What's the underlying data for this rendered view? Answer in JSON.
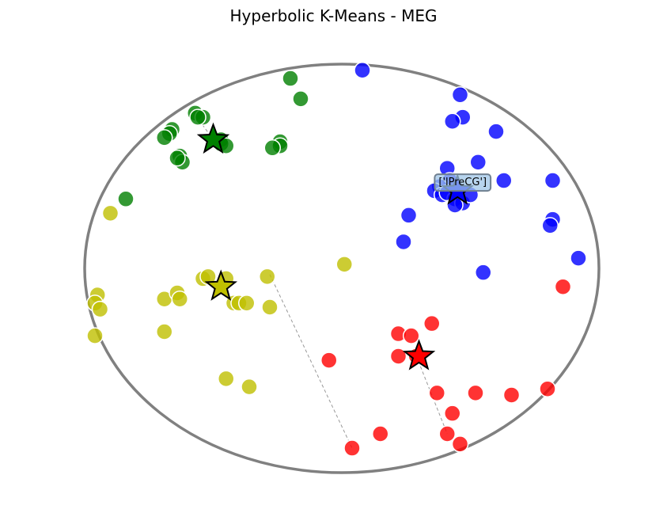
{
  "chart_data": {
    "type": "scatter",
    "title": "Hyperbolic K-Means - MEG",
    "xlim": [
      -1,
      1
    ],
    "ylim": [
      -1,
      1
    ],
    "grid": false,
    "legend": "none",
    "boundary": {
      "shape": "unit-circle",
      "color": "#808080"
    },
    "series": [
      {
        "color": "#0000ff",
        "centroid": [
          0.45,
          0.38
        ],
        "points": [
          [
            0.08,
            0.97
          ],
          [
            0.46,
            0.85
          ],
          [
            0.47,
            0.74
          ],
          [
            0.43,
            0.72
          ],
          [
            0.6,
            0.67
          ],
          [
            0.53,
            0.52
          ],
          [
            0.41,
            0.49
          ],
          [
            0.42,
            0.43
          ],
          [
            0.38,
            0.4
          ],
          [
            0.36,
            0.38
          ],
          [
            0.39,
            0.36
          ],
          [
            0.44,
            0.34
          ],
          [
            0.47,
            0.32
          ],
          [
            0.5,
            0.36
          ],
          [
            0.63,
            0.43
          ],
          [
            0.82,
            0.43
          ],
          [
            0.41,
            0.37
          ],
          [
            0.44,
            0.31
          ],
          [
            0.82,
            0.24
          ],
          [
            0.81,
            0.21
          ],
          [
            0.26,
            0.26
          ],
          [
            0.24,
            0.13
          ],
          [
            0.55,
            -0.02
          ],
          [
            0.92,
            0.05
          ]
        ]
      },
      {
        "color": "#008000",
        "centroid": [
          -0.5,
          0.63
        ],
        "points": [
          [
            -0.2,
            0.93
          ],
          [
            -0.16,
            0.83
          ],
          [
            -0.57,
            0.76
          ],
          [
            -0.54,
            0.74
          ],
          [
            -0.56,
            0.74
          ],
          [
            -0.66,
            0.68
          ],
          [
            -0.67,
            0.66
          ],
          [
            -0.69,
            0.64
          ],
          [
            -0.47,
            0.63
          ],
          [
            -0.47,
            0.61
          ],
          [
            -0.45,
            0.6
          ],
          [
            -0.24,
            0.62
          ],
          [
            -0.24,
            0.6
          ],
          [
            -0.27,
            0.59
          ],
          [
            -0.63,
            0.55
          ],
          [
            -0.62,
            0.52
          ],
          [
            -0.64,
            0.54
          ],
          [
            -0.84,
            0.34
          ]
        ]
      },
      {
        "color": "#bfbf00",
        "centroid": [
          -0.47,
          -0.09
        ],
        "points": [
          [
            -0.9,
            0.27
          ],
          [
            -0.54,
            -0.05
          ],
          [
            -0.52,
            -0.04
          ],
          [
            -0.45,
            -0.05
          ],
          [
            -0.29,
            -0.04
          ],
          [
            0.01,
            0.02
          ],
          [
            -0.95,
            -0.13
          ],
          [
            -0.96,
            -0.17
          ],
          [
            -0.94,
            -0.2
          ],
          [
            -0.69,
            -0.15
          ],
          [
            -0.64,
            -0.12
          ],
          [
            -0.63,
            -0.15
          ],
          [
            -0.42,
            -0.17
          ],
          [
            -0.4,
            -0.17
          ],
          [
            -0.37,
            -0.17
          ],
          [
            -0.28,
            -0.19
          ],
          [
            -0.96,
            -0.33
          ],
          [
            -0.69,
            -0.31
          ],
          [
            -0.45,
            -0.54
          ],
          [
            -0.36,
            -0.58
          ]
        ]
      },
      {
        "color": "#ff0000",
        "centroid": [
          0.3,
          -0.43
        ],
        "points": [
          [
            0.86,
            -0.09
          ],
          [
            0.35,
            -0.27
          ],
          [
            0.22,
            -0.32
          ],
          [
            0.27,
            -0.33
          ],
          [
            0.22,
            -0.43
          ],
          [
            0.29,
            -0.43
          ],
          [
            -0.05,
            -0.45
          ],
          [
            0.37,
            -0.61
          ],
          [
            0.52,
            -0.61
          ],
          [
            0.66,
            -0.62
          ],
          [
            0.8,
            -0.59
          ],
          [
            0.43,
            -0.71
          ],
          [
            0.15,
            -0.81
          ],
          [
            0.41,
            -0.81
          ],
          [
            0.46,
            -0.86
          ],
          [
            0.04,
            -0.88
          ]
        ]
      }
    ],
    "connectors": [
      {
        "from": [
          -0.28,
          -0.03
        ],
        "to": [
          0.04,
          -0.88
        ]
      },
      {
        "from": [
          0.29,
          -0.43
        ],
        "to": [
          0.41,
          -0.81
        ]
      },
      {
        "from": [
          -0.58,
          0.77
        ],
        "to": [
          -0.5,
          0.63
        ]
      }
    ],
    "annotation": {
      "text": "['lPreCG']",
      "at": [
        0.47,
        0.42
      ]
    }
  }
}
